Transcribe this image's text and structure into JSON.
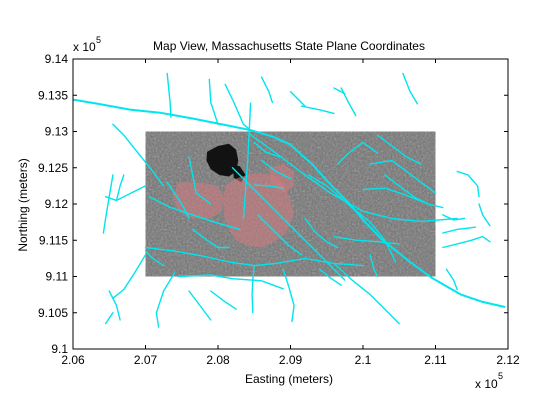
{
  "figure": {
    "title": "Map View, Massachusetts State Plane Coordinates",
    "xlabel": "Easting (meters)",
    "ylabel": "Northing (meters)",
    "x_exponent_base": "x 10",
    "x_exponent_power": "5",
    "y_exponent_base": "x 10",
    "y_exponent_power": "5"
  },
  "axes": {
    "xlim": [
      2.06,
      2.12
    ],
    "ylim": [
      9.1,
      9.14
    ],
    "x_ticks": [
      2.06,
      2.07,
      2.08,
      2.09,
      2.1,
      2.11,
      2.12
    ],
    "y_ticks": [
      9.1,
      9.105,
      9.11,
      9.115,
      9.12,
      9.125,
      9.13,
      9.135,
      9.14
    ],
    "x_tick_labels": [
      "2.06",
      "2.07",
      "2.08",
      "2.09",
      "2.1",
      "2.11",
      "2.12"
    ],
    "y_tick_labels": [
      "9.1",
      "9.105",
      "9.11",
      "9.115",
      "9.12",
      "9.125",
      "9.13",
      "9.135",
      "9.14"
    ]
  },
  "map_layers": {
    "ortho_image_extent": {
      "x": [
        2.07,
        2.11
      ],
      "y": [
        9.11,
        9.13
      ]
    },
    "road_color": "#00e5ee",
    "image_base_color": "#6f6f6f",
    "water_color": "#121212",
    "highlight_color": "#d47a80",
    "roads": [
      [
        [
          2.06,
          9.1344
        ],
        [
          2.0635,
          9.1338
        ],
        [
          2.068,
          9.133
        ],
        [
          2.072,
          9.1326
        ],
        [
          2.0765,
          9.1318
        ],
        [
          2.081,
          9.1309
        ],
        [
          2.0845,
          9.1302
        ],
        [
          2.0875,
          9.1293
        ],
        [
          2.09,
          9.1282
        ],
        [
          2.0915,
          9.1268
        ],
        [
          2.093,
          9.1255
        ],
        [
          2.0945,
          9.1238
        ],
        [
          2.0962,
          9.122
        ],
        [
          2.098,
          9.1202
        ],
        [
          2.1003,
          9.1175
        ],
        [
          2.1025,
          9.1152
        ],
        [
          2.1065,
          9.112
        ],
        [
          2.1095,
          9.1098
        ],
        [
          2.1135,
          9.1075
        ],
        [
          2.1165,
          9.1065
        ],
        [
          2.1195,
          9.1058
        ]
      ],
      [
        [
          2.0655,
          9.131
        ],
        [
          2.067,
          9.1295
        ],
        [
          2.069,
          9.127
        ],
        [
          2.071,
          9.1245
        ],
        [
          2.0725,
          9.1225
        ]
      ],
      [
        [
          2.0845,
          9.1339
        ],
        [
          2.0843,
          9.13
        ],
        [
          2.0841,
          9.126
        ],
        [
          2.0838,
          9.122
        ],
        [
          2.0835,
          9.118
        ]
      ],
      [
        [
          2.081,
          9.1365
        ],
        [
          2.0822,
          9.134
        ],
        [
          2.0835,
          9.131
        ],
        [
          2.0845,
          9.1302
        ]
      ],
      [
        [
          2.0788,
          9.1372
        ],
        [
          2.079,
          9.134
        ],
        [
          2.08,
          9.131
        ]
      ],
      [
        [
          2.0843,
          9.1297
        ],
        [
          2.088,
          9.127
        ],
        [
          2.092,
          9.124
        ],
        [
          2.0955,
          9.1215
        ],
        [
          2.1,
          9.119
        ],
        [
          2.104,
          9.118
        ],
        [
          2.108,
          9.1176
        ],
        [
          2.113,
          9.118
        ]
      ],
      [
        [
          2.082,
          9.125
        ],
        [
          2.086,
          9.121
        ],
        [
          2.089,
          9.118
        ],
        [
          2.092,
          9.115
        ],
        [
          2.095,
          9.112
        ],
        [
          2.0975,
          9.1095
        ]
      ],
      [
        [
          2.0925,
          9.124
        ],
        [
          2.095,
          9.1225
        ],
        [
          2.0985,
          9.1195
        ],
        [
          2.101,
          9.1175
        ],
        [
          2.103,
          9.115
        ],
        [
          2.1045,
          9.112
        ]
      ],
      [
        [
          2.0705,
          9.121
        ],
        [
          2.0735,
          9.1195
        ],
        [
          2.0765,
          9.1185
        ],
        [
          2.0795,
          9.1175
        ],
        [
          2.083,
          9.1165
        ]
      ],
      [
        [
          2.07,
          9.114
        ],
        [
          2.074,
          9.1135
        ],
        [
          2.078,
          9.1128
        ],
        [
          2.0815,
          9.112
        ],
        [
          2.085,
          9.1115
        ],
        [
          2.088,
          9.1118
        ],
        [
          2.092,
          9.1125
        ],
        [
          2.096,
          9.1118
        ],
        [
          2.1,
          9.1115
        ]
      ],
      [
        [
          2.0745,
          9.11
        ],
        [
          2.079,
          9.1102
        ],
        [
          2.082,
          9.1097
        ],
        [
          2.086,
          9.1094
        ],
        [
          2.089,
          9.1083
        ]
      ],
      [
        [
          2.085,
          9.1115
        ],
        [
          2.0848,
          9.1095
        ],
        [
          2.0847,
          9.1075
        ],
        [
          2.0848,
          9.105
        ]
      ],
      [
        [
          2.089,
          9.111
        ],
        [
          2.0898,
          9.1085
        ],
        [
          2.0905,
          9.106
        ],
        [
          2.0902,
          9.1038
        ]
      ],
      [
        [
          2.096,
          9.1118
        ],
        [
          2.0985,
          9.1095
        ],
        [
          2.101,
          9.1075
        ],
        [
          2.1035,
          9.105
        ],
        [
          2.105,
          9.1035
        ]
      ],
      [
        [
          2.074,
          9.1105
        ],
        [
          2.0725,
          9.108
        ],
        [
          2.0715,
          9.105
        ],
        [
          2.0718,
          9.103
        ]
      ],
      [
        [
          2.07,
          9.113
        ],
        [
          2.0685,
          9.1105
        ],
        [
          2.067,
          9.1082
        ],
        [
          2.0655,
          9.107
        ]
      ],
      [
        [
          2.065,
          9.108
        ],
        [
          2.066,
          9.106
        ],
        [
          2.0665,
          9.104
        ]
      ],
      [
        [
          2.0655,
          9.105
        ],
        [
          2.0645,
          9.1035
        ]
      ],
      [
        [
          2.076,
          9.108
        ],
        [
          2.0775,
          9.106
        ],
        [
          2.079,
          9.104
        ]
      ],
      [
        [
          2.079,
          9.108
        ],
        [
          2.081,
          9.1065
        ],
        [
          2.0825,
          9.1055
        ]
      ],
      [
        [
          2.07,
          9.1225
        ],
        [
          2.068,
          9.1215
        ],
        [
          2.066,
          9.1205
        ],
        [
          2.0645,
          9.121
        ]
      ],
      [
        [
          2.067,
          9.124
        ],
        [
          2.0665,
          9.1225
        ],
        [
          2.066,
          9.1205
        ]
      ],
      [
        [
          2.0655,
          9.124
        ],
        [
          2.065,
          9.121
        ],
        [
          2.0645,
          9.118
        ],
        [
          2.0642,
          9.116
        ]
      ],
      [
        [
          2.073,
          9.123
        ],
        [
          2.075,
          9.12
        ],
        [
          2.076,
          9.118
        ]
      ],
      [
        [
          2.076,
          9.1265
        ],
        [
          2.0765,
          9.124
        ],
        [
          2.077,
          9.1215
        ],
        [
          2.079,
          9.12
        ]
      ],
      [
        [
          2.073,
          9.138
        ],
        [
          2.0734,
          9.134
        ],
        [
          2.0735,
          9.132
        ]
      ],
      [
        [
          2.086,
          9.1375
        ],
        [
          2.087,
          9.1355
        ],
        [
          2.0875,
          9.134
        ]
      ],
      [
        [
          2.09,
          9.1355
        ],
        [
          2.091,
          9.1345
        ],
        [
          2.092,
          9.1335
        ]
      ],
      [
        [
          2.0915,
          9.1335
        ],
        [
          2.094,
          9.133
        ],
        [
          2.096,
          9.1325
        ]
      ],
      [
        [
          2.1055,
          9.138
        ],
        [
          2.1065,
          9.1355
        ],
        [
          2.1075,
          9.1338
        ]
      ],
      [
        [
          2.096,
          9.136
        ],
        [
          2.0975,
          9.1352
        ]
      ],
      [
        [
          2.101,
          9.1255
        ],
        [
          2.104,
          9.126
        ],
        [
          2.106,
          9.1245
        ],
        [
          2.108,
          9.123
        ],
        [
          2.11,
          9.1215
        ]
      ],
      [
        [
          2.103,
          9.124
        ],
        [
          2.105,
          9.1225
        ],
        [
          2.107,
          9.121
        ],
        [
          2.109,
          9.12
        ]
      ],
      [
        [
          2.0965,
          9.1255
        ],
        [
          2.098,
          9.127
        ],
        [
          2.1,
          9.1285
        ],
        [
          2.102,
          9.127
        ]
      ],
      [
        [
          2.1,
          9.122
        ],
        [
          2.103,
          9.1222
        ],
        [
          2.106,
          9.1212
        ],
        [
          2.109,
          9.12
        ],
        [
          2.111,
          9.1195
        ]
      ],
      [
        [
          2.102,
          9.1295
        ],
        [
          2.104,
          9.128
        ],
        [
          2.106,
          9.1265
        ],
        [
          2.108,
          9.1255
        ]
      ],
      [
        [
          2.113,
          9.1245
        ],
        [
          2.1145,
          9.124
        ],
        [
          2.1158,
          9.1225
        ],
        [
          2.116,
          9.121
        ]
      ],
      [
        [
          2.111,
          9.1185
        ],
        [
          2.1125,
          9.1178
        ],
        [
          2.114,
          9.118
        ]
      ],
      [
        [
          2.111,
          9.114
        ],
        [
          2.113,
          9.1145
        ],
        [
          2.115,
          9.115
        ],
        [
          2.1165,
          9.1155
        ],
        [
          2.1175,
          9.1148
        ]
      ],
      [
        [
          2.111,
          9.116
        ],
        [
          2.113,
          9.1165
        ],
        [
          2.1155,
          9.1168
        ]
      ],
      [
        [
          2.1115,
          9.111
        ],
        [
          2.1125,
          9.1095
        ],
        [
          2.113,
          9.1082
        ]
      ],
      [
        [
          2.116,
          9.12
        ],
        [
          2.1165,
          9.1185
        ],
        [
          2.1175,
          9.117
        ]
      ],
      [
        [
          2.07,
          9.1135
        ],
        [
          2.071,
          9.1125
        ],
        [
          2.0725,
          9.1115
        ]
      ],
      [
        [
          2.0765,
          9.1165
        ],
        [
          2.0785,
          9.115
        ],
        [
          2.08,
          9.114
        ],
        [
          2.0815,
          9.114
        ]
      ],
      [
        [
          2.0855,
          9.1185
        ],
        [
          2.0875,
          9.1165
        ],
        [
          2.0895,
          9.1145
        ],
        [
          2.0915,
          9.113
        ]
      ],
      [
        [
          2.092,
          9.118
        ],
        [
          2.0935,
          9.116
        ],
        [
          2.095,
          9.1148
        ],
        [
          2.0965,
          9.114
        ]
      ],
      [
        [
          2.086,
          9.126
        ],
        [
          2.088,
          9.1245
        ],
        [
          2.09,
          9.1235
        ]
      ],
      [
        [
          2.085,
          9.1285
        ],
        [
          2.0865,
          9.1272
        ],
        [
          2.0885,
          9.1265
        ]
      ],
      [
        [
          2.085,
          9.1226
        ],
        [
          2.087,
          9.1225
        ],
        [
          2.089,
          9.1222
        ]
      ],
      [
        [
          2.096,
          9.1155
        ],
        [
          2.099,
          9.115
        ],
        [
          2.102,
          9.1148
        ],
        [
          2.105,
          9.1145
        ]
      ],
      [
        [
          2.101,
          9.113
        ],
        [
          2.1015,
          9.111
        ],
        [
          2.102,
          9.11
        ]
      ],
      [
        [
          2.094,
          9.111
        ],
        [
          2.0955,
          9.1098
        ],
        [
          2.097,
          9.1088
        ]
      ],
      [
        [
          2.097,
          9.136
        ],
        [
          2.098,
          9.134
        ],
        [
          2.099,
          9.1322
        ]
      ]
    ],
    "water": [
      [
        [
          2.0785,
          9.1272
        ],
        [
          2.08,
          9.128
        ],
        [
          2.0815,
          9.1283
        ],
        [
          2.0825,
          9.1275
        ],
        [
          2.0828,
          9.126
        ],
        [
          2.0825,
          9.1245
        ],
        [
          2.0815,
          9.1238
        ],
        [
          2.0802,
          9.124
        ],
        [
          2.079,
          9.1248
        ],
        [
          2.0784,
          9.126
        ]
      ],
      [
        [
          2.082,
          9.1255
        ],
        [
          2.083,
          9.1252
        ],
        [
          2.0838,
          9.124
        ],
        [
          2.0832,
          9.123
        ],
        [
          2.0822,
          9.1236
        ]
      ]
    ],
    "highlight": [
      [
        [
          2.081,
          9.1225
        ],
        [
          2.0825,
          9.1235
        ],
        [
          2.0845,
          9.1242
        ],
        [
          2.0868,
          9.1242
        ],
        [
          2.0885,
          9.1235
        ],
        [
          2.0893,
          9.1222
        ],
        [
          2.09,
          9.1205
        ],
        [
          2.0905,
          9.1188
        ],
        [
          2.09,
          9.1172
        ],
        [
          2.0892,
          9.1158
        ],
        [
          2.0878,
          9.1148
        ],
        [
          2.086,
          9.114
        ],
        [
          2.0842,
          9.1142
        ],
        [
          2.0825,
          9.115
        ],
        [
          2.0815,
          9.1165
        ],
        [
          2.0808,
          9.1185
        ],
        [
          2.0807,
          9.1205
        ]
      ],
      [
        [
          2.0745,
          9.123
        ],
        [
          2.0775,
          9.123
        ],
        [
          2.08,
          9.1225
        ],
        [
          2.0808,
          9.121
        ],
        [
          2.0805,
          9.119
        ],
        [
          2.079,
          9.118
        ],
        [
          2.0765,
          9.118
        ],
        [
          2.0745,
          9.119
        ],
        [
          2.0738,
          9.121
        ]
      ],
      [
        [
          2.087,
          9.125
        ],
        [
          2.089,
          9.1255
        ],
        [
          2.0905,
          9.1245
        ],
        [
          2.0905,
          9.1225
        ],
        [
          2.0892,
          9.1215
        ],
        [
          2.0875,
          9.1225
        ]
      ]
    ]
  }
}
